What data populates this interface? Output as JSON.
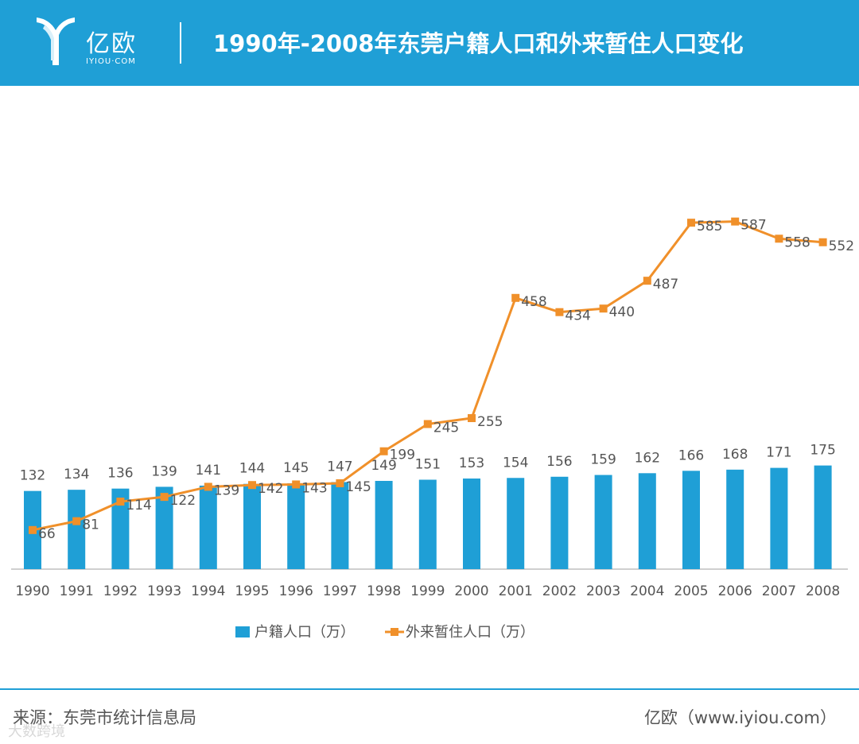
{
  "header": {
    "logo_text": "亿欧",
    "logo_sub": "IYIOU·COM",
    "title": "1990年-2008年东莞户籍人口和外来暂住人口变化"
  },
  "colors": {
    "bar": "#1f9fd6",
    "line": "#f0902a",
    "header": "#1f9fd6",
    "text": "#555555"
  },
  "chart_data": {
    "type": "bar+line",
    "categories": [
      "1990",
      "1991",
      "1992",
      "1993",
      "1994",
      "1995",
      "1996",
      "1997",
      "1998",
      "1999",
      "2000",
      "2001",
      "2002",
      "2003",
      "2004",
      "2005",
      "2006",
      "2007",
      "2008"
    ],
    "series": [
      {
        "name": "户籍人口（万）",
        "type": "bar",
        "values": [
          132,
          134,
          136,
          139,
          141,
          144,
          145,
          147,
          149,
          151,
          153,
          154,
          156,
          159,
          162,
          166,
          168,
          171,
          175
        ]
      },
      {
        "name": "外来暂住人口（万）",
        "type": "line",
        "values": [
          66,
          81,
          114,
          122,
          139,
          142,
          143,
          145,
          199,
          245,
          255,
          458,
          434,
          440,
          487,
          585,
          587,
          558,
          552
        ]
      }
    ],
    "ylim": [
      0,
      700
    ],
    "legend_position": "bottom-center",
    "title": "",
    "xlabel": "",
    "ylabel": ""
  },
  "footer": {
    "source": "来源：东莞市统计信息局",
    "credit": "亿欧（www.iyiou.com）",
    "watermark": "大数跨境"
  }
}
